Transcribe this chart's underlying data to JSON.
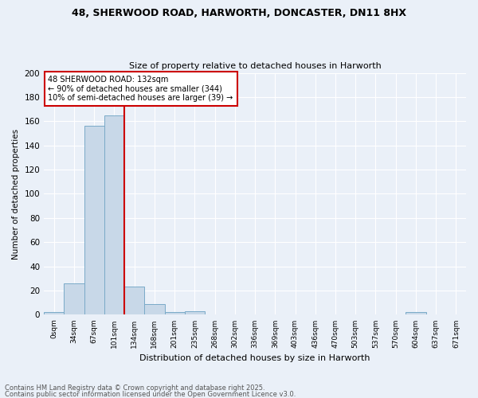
{
  "title_line1": "48, SHERWOOD ROAD, HARWORTH, DONCASTER, DN11 8HX",
  "title_line2": "Size of property relative to detached houses in Harworth",
  "xlabel": "Distribution of detached houses by size in Harworth",
  "ylabel": "Number of detached properties",
  "bar_values": [
    2,
    26,
    156,
    165,
    23,
    9,
    2,
    3,
    0,
    0,
    0,
    0,
    0,
    0,
    0,
    0,
    0,
    0,
    2,
    0,
    0
  ],
  "bin_labels": [
    "0sqm",
    "34sqm",
    "67sqm",
    "101sqm",
    "134sqm",
    "168sqm",
    "201sqm",
    "235sqm",
    "268sqm",
    "302sqm",
    "336sqm",
    "369sqm",
    "403sqm",
    "436sqm",
    "470sqm",
    "503sqm",
    "537sqm",
    "570sqm",
    "604sqm",
    "637sqm",
    "671sqm"
  ],
  "bar_color": "#c8d8e8",
  "bar_edge_color": "#7aaac8",
  "property_line_x": 3.5,
  "annotation_text": "48 SHERWOOD ROAD: 132sqm\n← 90% of detached houses are smaller (344)\n10% of semi-detached houses are larger (39) →",
  "annotation_box_color": "#ffffff",
  "annotation_box_edge": "#cc0000",
  "vline_color": "#cc0000",
  "ylim": [
    0,
    200
  ],
  "yticks": [
    0,
    20,
    40,
    60,
    80,
    100,
    120,
    140,
    160,
    180,
    200
  ],
  "background_color": "#eaf0f8",
  "footer_line1": "Contains HM Land Registry data © Crown copyright and database right 2025.",
  "footer_line2": "Contains public sector information licensed under the Open Government Licence v3.0.",
  "grid_color": "#ffffff",
  "num_bins": 21
}
